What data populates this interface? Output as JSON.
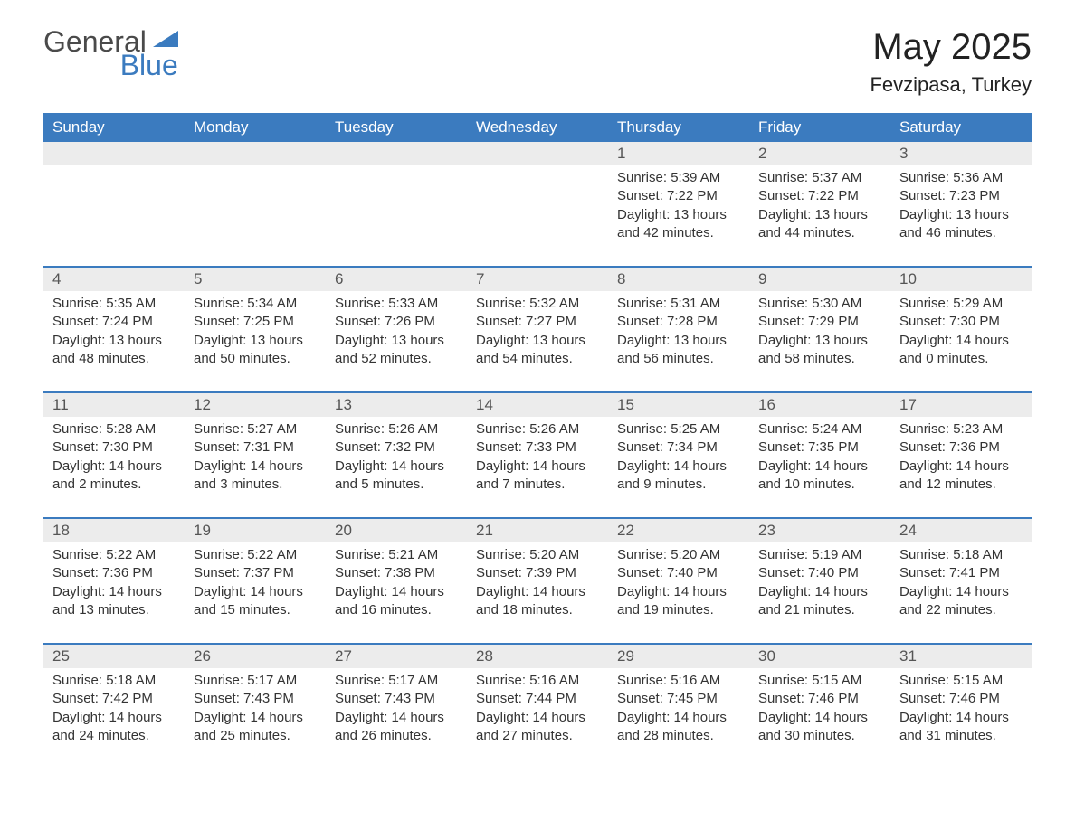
{
  "brand": {
    "part1": "General",
    "part2": "Blue",
    "color1": "#4a4a4a",
    "color2": "#3b7bbf"
  },
  "title": {
    "month_year": "May 2025",
    "location": "Fevzipasa, Turkey"
  },
  "style": {
    "header_bg": "#3b7bbf",
    "header_text": "#ffffff",
    "daynum_bg": "#ececec",
    "border_color": "#3b7bbf",
    "body_text": "#333333",
    "font_family": "Arial, Helvetica, sans-serif",
    "month_fontsize": 40,
    "location_fontsize": 22,
    "header_fontsize": 17,
    "cell_fontsize": 15
  },
  "day_headers": [
    "Sunday",
    "Monday",
    "Tuesday",
    "Wednesday",
    "Thursday",
    "Friday",
    "Saturday"
  ],
  "weeks": [
    [
      null,
      null,
      null,
      null,
      {
        "n": "1",
        "sr": "5:39 AM",
        "ss": "7:22 PM",
        "dl": "13 hours and 42 minutes."
      },
      {
        "n": "2",
        "sr": "5:37 AM",
        "ss": "7:22 PM",
        "dl": "13 hours and 44 minutes."
      },
      {
        "n": "3",
        "sr": "5:36 AM",
        "ss": "7:23 PM",
        "dl": "13 hours and 46 minutes."
      }
    ],
    [
      {
        "n": "4",
        "sr": "5:35 AM",
        "ss": "7:24 PM",
        "dl": "13 hours and 48 minutes."
      },
      {
        "n": "5",
        "sr": "5:34 AM",
        "ss": "7:25 PM",
        "dl": "13 hours and 50 minutes."
      },
      {
        "n": "6",
        "sr": "5:33 AM",
        "ss": "7:26 PM",
        "dl": "13 hours and 52 minutes."
      },
      {
        "n": "7",
        "sr": "5:32 AM",
        "ss": "7:27 PM",
        "dl": "13 hours and 54 minutes."
      },
      {
        "n": "8",
        "sr": "5:31 AM",
        "ss": "7:28 PM",
        "dl": "13 hours and 56 minutes."
      },
      {
        "n": "9",
        "sr": "5:30 AM",
        "ss": "7:29 PM",
        "dl": "13 hours and 58 minutes."
      },
      {
        "n": "10",
        "sr": "5:29 AM",
        "ss": "7:30 PM",
        "dl": "14 hours and 0 minutes."
      }
    ],
    [
      {
        "n": "11",
        "sr": "5:28 AM",
        "ss": "7:30 PM",
        "dl": "14 hours and 2 minutes."
      },
      {
        "n": "12",
        "sr": "5:27 AM",
        "ss": "7:31 PM",
        "dl": "14 hours and 3 minutes."
      },
      {
        "n": "13",
        "sr": "5:26 AM",
        "ss": "7:32 PM",
        "dl": "14 hours and 5 minutes."
      },
      {
        "n": "14",
        "sr": "5:26 AM",
        "ss": "7:33 PM",
        "dl": "14 hours and 7 minutes."
      },
      {
        "n": "15",
        "sr": "5:25 AM",
        "ss": "7:34 PM",
        "dl": "14 hours and 9 minutes."
      },
      {
        "n": "16",
        "sr": "5:24 AM",
        "ss": "7:35 PM",
        "dl": "14 hours and 10 minutes."
      },
      {
        "n": "17",
        "sr": "5:23 AM",
        "ss": "7:36 PM",
        "dl": "14 hours and 12 minutes."
      }
    ],
    [
      {
        "n": "18",
        "sr": "5:22 AM",
        "ss": "7:36 PM",
        "dl": "14 hours and 13 minutes."
      },
      {
        "n": "19",
        "sr": "5:22 AM",
        "ss": "7:37 PM",
        "dl": "14 hours and 15 minutes."
      },
      {
        "n": "20",
        "sr": "5:21 AM",
        "ss": "7:38 PM",
        "dl": "14 hours and 16 minutes."
      },
      {
        "n": "21",
        "sr": "5:20 AM",
        "ss": "7:39 PM",
        "dl": "14 hours and 18 minutes."
      },
      {
        "n": "22",
        "sr": "5:20 AM",
        "ss": "7:40 PM",
        "dl": "14 hours and 19 minutes."
      },
      {
        "n": "23",
        "sr": "5:19 AM",
        "ss": "7:40 PM",
        "dl": "14 hours and 21 minutes."
      },
      {
        "n": "24",
        "sr": "5:18 AM",
        "ss": "7:41 PM",
        "dl": "14 hours and 22 minutes."
      }
    ],
    [
      {
        "n": "25",
        "sr": "5:18 AM",
        "ss": "7:42 PM",
        "dl": "14 hours and 24 minutes."
      },
      {
        "n": "26",
        "sr": "5:17 AM",
        "ss": "7:43 PM",
        "dl": "14 hours and 25 minutes."
      },
      {
        "n": "27",
        "sr": "5:17 AM",
        "ss": "7:43 PM",
        "dl": "14 hours and 26 minutes."
      },
      {
        "n": "28",
        "sr": "5:16 AM",
        "ss": "7:44 PM",
        "dl": "14 hours and 27 minutes."
      },
      {
        "n": "29",
        "sr": "5:16 AM",
        "ss": "7:45 PM",
        "dl": "14 hours and 28 minutes."
      },
      {
        "n": "30",
        "sr": "5:15 AM",
        "ss": "7:46 PM",
        "dl": "14 hours and 30 minutes."
      },
      {
        "n": "31",
        "sr": "5:15 AM",
        "ss": "7:46 PM",
        "dl": "14 hours and 31 minutes."
      }
    ]
  ],
  "labels": {
    "sunrise": "Sunrise: ",
    "sunset": "Sunset: ",
    "daylight": "Daylight: "
  }
}
